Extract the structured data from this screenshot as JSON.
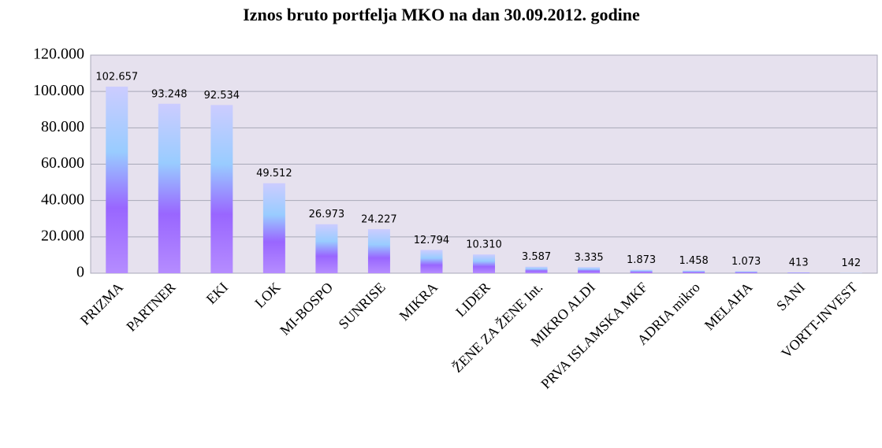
{
  "chart_data": {
    "type": "bar",
    "title": "Iznos bruto portfelja MKO na dan 30.09.2012. godine",
    "categories": [
      "PRIZMA",
      "PARTNER",
      "EKI",
      "LOK",
      "MI-BOSPO",
      "SUNRISE",
      "MIKRA",
      "LIDER",
      "ŽENE ZA ŽENE Int.",
      "MIKRO ALDI",
      "PRVA ISLAMSKA MKF",
      "ADRIA mikro",
      "MELAHA",
      "SANI",
      "VORTT-INVEST"
    ],
    "values": [
      102657,
      93248,
      92534,
      49512,
      26973,
      24227,
      12794,
      10310,
      3587,
      3335,
      1873,
      1458,
      1073,
      413,
      142
    ],
    "value_labels": [
      "102.657",
      "93.248",
      "92.534",
      "49.512",
      "26.973",
      "24.227",
      "12.794",
      "10.310",
      "3.587",
      "3.335",
      "1.873",
      "1.458",
      "1.073",
      "413",
      "142"
    ],
    "color": "#9966ff",
    "ylim": [
      0,
      120000
    ],
    "yticks": [
      0,
      {
        "value": 20000,
        "label": "20.000"
      },
      {
        "value": 40000,
        "label": "40.000"
      },
      {
        "value": 60000,
        "label": "60.000"
      },
      {
        "value": 80000,
        "label": "80.000"
      },
      {
        "value": 100000,
        "label": "100.000"
      },
      {
        "value": 120000,
        "label": "120.000"
      }
    ],
    "grid": true
  }
}
